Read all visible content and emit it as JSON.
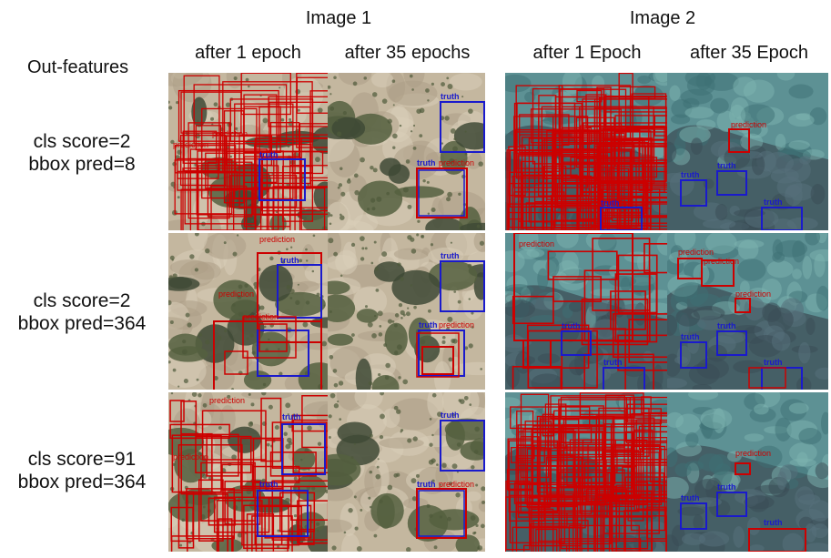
{
  "header": {
    "image1_title": "Image 1",
    "image2_title": "Image 2",
    "row_header": "Out-features",
    "columns": [
      "after 1 epoch",
      "after 35 epochs",
      "after 1 Epoch",
      "after 35 Epoch"
    ]
  },
  "rows": [
    {
      "line1": "cls score=2",
      "line2": "bbox pred=8"
    },
    {
      "line1": "cls score=2",
      "line2": "bbox pred=364"
    },
    {
      "line1": "cls score=91",
      "line2": "bbox pred=364"
    }
  ],
  "box_labels": {
    "truth": "truth",
    "prediction": "prediction"
  },
  "colors": {
    "prediction": "#cc0000",
    "truth": "#1a1acc",
    "image1_ground": "#c9bda6",
    "image2_ground": "#4f7e84"
  }
}
